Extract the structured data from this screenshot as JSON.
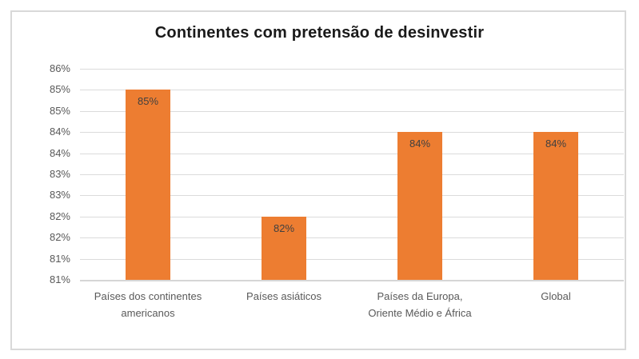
{
  "chart_data": {
    "type": "bar",
    "title": "Continentes com pretensão de desinvestir",
    "categories": [
      "Países dos continentes americanos",
      "Países asiáticos",
      "Países da Europa, Oriente Médio e África",
      "Global"
    ],
    "category_label_lines": [
      [
        "Países dos continentes",
        "americanos"
      ],
      [
        "Países asiáticos"
      ],
      [
        "Países da Europa,",
        "Oriente Médio e África"
      ],
      [
        "Global"
      ]
    ],
    "values": [
      85,
      82,
      84,
      84
    ],
    "data_labels": [
      "85%",
      "82%",
      "84%",
      "84%"
    ],
    "bar_top_values_as_drawn": [
      85.5,
      82.5,
      84.5,
      84.5
    ],
    "xlabel": "",
    "ylabel": "",
    "ylim": [
      81,
      86
    ],
    "y_major_unit": 0.5,
    "y_tick_labels_top_to_bottom": [
      "86%",
      "85%",
      "85%",
      "84%",
      "84%",
      "83%",
      "83%",
      "82%",
      "82%",
      "81%",
      "81%"
    ],
    "grid": true,
    "legend_position": "none",
    "colors": {
      "bar": "#ED7D31",
      "title": "#1A1A1A",
      "axis_labels": "#595959",
      "data_labels": "#404040",
      "gridline": "#DBDBDB",
      "axis_line": "#D6D6D6",
      "frame_border": "#D9D9D9",
      "background": "#FFFFFF"
    }
  }
}
